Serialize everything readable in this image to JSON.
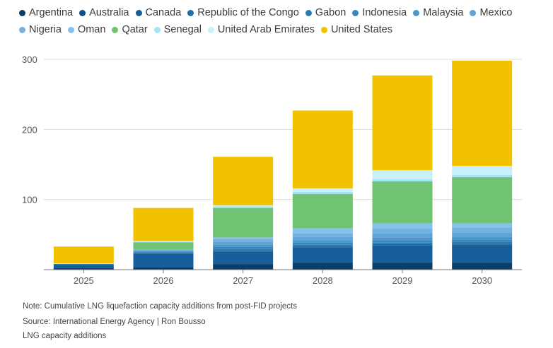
{
  "chart_data": {
    "type": "bar",
    "stacked": true,
    "categories": [
      "2025",
      "2026",
      "2027",
      "2028",
      "2029",
      "2030"
    ],
    "ylim": [
      0,
      300
    ],
    "yticks": [
      100,
      200,
      300
    ],
    "grid": true,
    "legend_position": "top",
    "series": [
      {
        "name": "Argentina",
        "color": "#0b3f6b",
        "values": [
          2,
          3,
          8,
          10,
          10,
          10
        ]
      },
      {
        "name": "Australia",
        "color": "#0d4f86",
        "values": [
          0,
          0,
          0,
          0,
          0,
          0
        ]
      },
      {
        "name": "Canada",
        "color": "#175f9b",
        "values": [
          5,
          20,
          18,
          22,
          25,
          26
        ]
      },
      {
        "name": "Republic of the Congo",
        "color": "#1f6ea8",
        "values": [
          1,
          1,
          2,
          2,
          2,
          2
        ]
      },
      {
        "name": "Gabon",
        "color": "#2a7bb4",
        "values": [
          0,
          1,
          2,
          2,
          2,
          2
        ]
      },
      {
        "name": "Indonesia",
        "color": "#3888c0",
        "values": [
          0,
          1,
          3,
          3,
          3,
          3
        ]
      },
      {
        "name": "Malaysia",
        "color": "#4b96cb",
        "values": [
          0,
          1,
          3,
          3,
          4,
          4
        ]
      },
      {
        "name": "Mexico",
        "color": "#5fa4d6",
        "values": [
          0,
          1,
          4,
          5,
          6,
          6
        ]
      },
      {
        "name": "Nigeria",
        "color": "#73b1e0",
        "values": [
          0,
          1,
          4,
          5,
          7,
          7
        ]
      },
      {
        "name": "Oman",
        "color": "#88c1ed",
        "values": [
          0,
          0,
          2,
          7,
          7,
          6
        ]
      },
      {
        "name": "Qatar",
        "color": "#6fc372",
        "values": [
          0,
          10,
          42,
          49,
          60,
          66
        ]
      },
      {
        "name": "Senegal",
        "color": "#a6e4f5",
        "values": [
          0,
          1,
          2,
          3,
          3,
          3
        ]
      },
      {
        "name": "United Arab Emirates",
        "color": "#c7f0fa",
        "values": [
          1,
          1,
          2,
          5,
          13,
          13
        ]
      },
      {
        "name": "United States",
        "color": "#f2c200",
        "values": [
          24,
          47,
          69,
          111,
          135,
          150
        ]
      }
    ]
  },
  "footer": {
    "note": "Note: Cumulative LNG liquefaction capacity additions from post-FID projects",
    "source": "Source: International Energy Agency | Ron Bousso",
    "title": "LNG capacity additions"
  }
}
